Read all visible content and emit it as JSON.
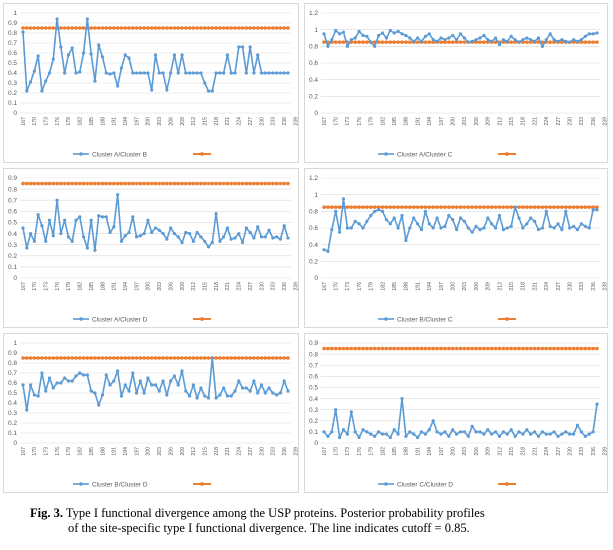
{
  "chart_data": [
    {
      "type": "line",
      "panel": 1,
      "ylim": [
        0,
        1
      ],
      "yticks": [
        "0",
        "0.1",
        "0.2",
        "0.3",
        "0.4",
        "0.5",
        "0.6",
        "0.7",
        "0.8",
        "0.9",
        "1"
      ],
      "x_tick_labels": [
        "167",
        "170",
        "173",
        "176",
        "179",
        "182",
        "185",
        "188",
        "191",
        "194",
        "197",
        "200",
        "203",
        "206",
        "209",
        "212",
        "215",
        "218",
        "221",
        "224",
        "227",
        "230",
        "233",
        "236",
        "239",
        "242",
        "245",
        "248",
        "251",
        "254",
        "257",
        "260",
        "263"
      ],
      "series": [
        {
          "name": "Cluster A/Cluster B",
          "color": "#5b9bd5",
          "marker": "circle",
          "values": [
            0.81,
            0.22,
            0.31,
            0.42,
            0.57,
            0.22,
            0.32,
            0.4,
            0.54,
            0.94,
            0.66,
            0.4,
            0.58,
            0.65,
            0.4,
            0.41,
            0.6,
            0.94,
            0.59,
            0.32,
            0.68,
            0.56,
            0.4,
            0.39,
            0.4,
            0.27,
            0.45,
            0.58,
            0.55,
            0.4,
            0.4,
            0.4,
            0.4,
            0.4,
            0.23,
            0.58,
            0.4,
            0.4,
            0.23,
            0.4,
            0.58,
            0.4,
            0.58,
            0.4,
            0.4,
            0.4,
            0.4,
            0.4,
            0.3,
            0.22,
            0.22,
            0.4,
            0.4,
            0.4,
            0.58,
            0.4,
            0.4,
            0.66,
            0.66,
            0.4,
            0.66,
            0.4,
            0.58,
            0.4,
            0.4,
            0.4,
            0.4,
            0.4,
            0.4,
            0.4,
            0.4
          ]
        },
        {
          "name": "",
          "color": "#ed7d31",
          "marker": "circle",
          "constant": 0.85
        }
      ]
    },
    {
      "type": "line",
      "panel": 2,
      "ylim": [
        0,
        1.2
      ],
      "yticks": [
        "0",
        "0.2",
        "0.4",
        "0.6",
        "0.8",
        "1",
        "1.2"
      ],
      "x_tick_labels": [
        "167",
        "170",
        "173",
        "176",
        "179",
        "182",
        "185",
        "188",
        "191",
        "194",
        "197",
        "200",
        "203",
        "206",
        "209",
        "212",
        "215",
        "218",
        "221",
        "224",
        "227",
        "230",
        "233",
        "236",
        "239",
        "242",
        "245",
        "248",
        "251",
        "254",
        "257",
        "260",
        "263"
      ],
      "series": [
        {
          "name": "Cluster A/Cluster C",
          "color": "#5b9bd5",
          "marker": "circle",
          "values": [
            0.95,
            0.8,
            0.88,
            0.99,
            0.95,
            0.97,
            0.8,
            0.88,
            0.9,
            0.98,
            0.93,
            0.92,
            0.85,
            0.8,
            0.93,
            0.96,
            0.9,
            0.99,
            0.96,
            0.98,
            0.95,
            0.93,
            0.9,
            0.86,
            0.9,
            0.86,
            0.92,
            0.95,
            0.88,
            0.86,
            0.9,
            0.88,
            0.9,
            0.93,
            0.88,
            0.95,
            0.9,
            0.85,
            0.86,
            0.88,
            0.9,
            0.93,
            0.88,
            0.86,
            0.9,
            0.82,
            0.88,
            0.86,
            0.92,
            0.88,
            0.85,
            0.88,
            0.9,
            0.88,
            0.86,
            0.9,
            0.8,
            0.88,
            0.95,
            0.88,
            0.86,
            0.88,
            0.86,
            0.85,
            0.88,
            0.86,
            0.88,
            0.92,
            0.95,
            0.95,
            0.96
          ]
        },
        {
          "name": "",
          "color": "#ed7d31",
          "marker": "circle",
          "constant": 0.85
        }
      ]
    },
    {
      "type": "line",
      "panel": 3,
      "ylim": [
        0,
        0.9
      ],
      "yticks": [
        "0",
        "0.1",
        "0.2",
        "0.3",
        "0.4",
        "0.5",
        "0.6",
        "0.7",
        "0.8",
        "0.9"
      ],
      "x_tick_labels": [
        "167",
        "170",
        "173",
        "176",
        "179",
        "182",
        "185",
        "188",
        "191",
        "194",
        "197",
        "200",
        "203",
        "206",
        "209",
        "212",
        "215",
        "218",
        "221",
        "224",
        "227",
        "230",
        "233",
        "236",
        "239",
        "242",
        "245",
        "248",
        "251",
        "254",
        "257",
        "260",
        "263"
      ],
      "series": [
        {
          "name": "Cluster A/Cluster D",
          "color": "#5b9bd5",
          "marker": "circle",
          "values": [
            0.45,
            0.27,
            0.4,
            0.33,
            0.57,
            0.47,
            0.33,
            0.52,
            0.38,
            0.7,
            0.4,
            0.52,
            0.37,
            0.33,
            0.52,
            0.55,
            0.37,
            0.27,
            0.52,
            0.25,
            0.56,
            0.55,
            0.55,
            0.41,
            0.46,
            0.75,
            0.33,
            0.38,
            0.41,
            0.55,
            0.37,
            0.38,
            0.4,
            0.52,
            0.41,
            0.45,
            0.43,
            0.4,
            0.35,
            0.45,
            0.4,
            0.37,
            0.32,
            0.41,
            0.4,
            0.33,
            0.41,
            0.37,
            0.33,
            0.28,
            0.32,
            0.58,
            0.33,
            0.37,
            0.45,
            0.35,
            0.36,
            0.4,
            0.32,
            0.45,
            0.41,
            0.36,
            0.46,
            0.37,
            0.37,
            0.43,
            0.36,
            0.37,
            0.35,
            0.47,
            0.36
          ]
        },
        {
          "name": "",
          "color": "#ed7d31",
          "marker": "circle",
          "constant": 0.85
        }
      ]
    },
    {
      "type": "line",
      "panel": 4,
      "ylim": [
        0,
        1.2
      ],
      "yticks": [
        "0",
        "0.2",
        "0.4",
        "0.6",
        "0.8",
        "1",
        "1.2"
      ],
      "x_tick_labels": [
        "167",
        "170",
        "173",
        "176",
        "179",
        "182",
        "185",
        "188",
        "191",
        "194",
        "197",
        "200",
        "203",
        "206",
        "209",
        "212",
        "215",
        "218",
        "221",
        "224",
        "227",
        "230",
        "233",
        "236",
        "239",
        "242",
        "245",
        "248",
        "251",
        "254",
        "257",
        "260",
        "263"
      ],
      "series": [
        {
          "name": "Cluster B/Cluster C",
          "color": "#5b9bd5",
          "marker": "circle",
          "values": [
            0.34,
            0.32,
            0.58,
            0.8,
            0.55,
            0.95,
            0.6,
            0.6,
            0.68,
            0.65,
            0.6,
            0.68,
            0.75,
            0.8,
            0.82,
            0.8,
            0.7,
            0.65,
            0.72,
            0.6,
            0.75,
            0.45,
            0.6,
            0.72,
            0.65,
            0.58,
            0.8,
            0.65,
            0.6,
            0.72,
            0.6,
            0.62,
            0.75,
            0.7,
            0.58,
            0.72,
            0.68,
            0.6,
            0.55,
            0.62,
            0.58,
            0.6,
            0.72,
            0.65,
            0.6,
            0.75,
            0.58,
            0.6,
            0.62,
            0.85,
            0.72,
            0.6,
            0.65,
            0.72,
            0.68,
            0.58,
            0.6,
            0.8,
            0.62,
            0.6,
            0.65,
            0.58,
            0.8,
            0.6,
            0.62,
            0.58,
            0.65,
            0.62,
            0.6,
            0.82,
            0.82
          ]
        },
        {
          "name": "",
          "color": "#ed7d31",
          "marker": "circle",
          "constant": 0.85
        }
      ]
    },
    {
      "type": "line",
      "panel": 5,
      "ylim": [
        0,
        1
      ],
      "yticks": [
        "0",
        "0.1",
        "0.2",
        "0.3",
        "0.4",
        "0.5",
        "0.6",
        "0.7",
        "0.8",
        "0.9",
        "1"
      ],
      "x_tick_labels": [
        "167",
        "170",
        "173",
        "176",
        "179",
        "182",
        "185",
        "188",
        "191",
        "194",
        "197",
        "200",
        "203",
        "206",
        "209",
        "212",
        "215",
        "218",
        "221",
        "224",
        "227",
        "230",
        "233",
        "236",
        "239",
        "242",
        "245",
        "248",
        "251",
        "254",
        "257",
        "260",
        "263"
      ],
      "series": [
        {
          "name": "Cluster B/Cluster D",
          "color": "#5b9bd5",
          "marker": "circle",
          "values": [
            0.58,
            0.33,
            0.58,
            0.48,
            0.47,
            0.7,
            0.52,
            0.65,
            0.55,
            0.6,
            0.6,
            0.65,
            0.62,
            0.62,
            0.67,
            0.7,
            0.68,
            0.68,
            0.52,
            0.5,
            0.38,
            0.48,
            0.68,
            0.58,
            0.62,
            0.72,
            0.47,
            0.58,
            0.52,
            0.7,
            0.5,
            0.62,
            0.5,
            0.65,
            0.58,
            0.58,
            0.52,
            0.62,
            0.48,
            0.62,
            0.67,
            0.58,
            0.72,
            0.52,
            0.47,
            0.58,
            0.45,
            0.55,
            0.47,
            0.45,
            0.85,
            0.45,
            0.48,
            0.55,
            0.47,
            0.47,
            0.52,
            0.62,
            0.55,
            0.55,
            0.52,
            0.62,
            0.5,
            0.58,
            0.5,
            0.55,
            0.5,
            0.48,
            0.5,
            0.62,
            0.52
          ]
        },
        {
          "name": "",
          "color": "#ed7d31",
          "marker": "circle",
          "constant": 0.85
        }
      ]
    },
    {
      "type": "line",
      "panel": 6,
      "ylim": [
        0,
        0.9
      ],
      "yticks": [
        "0",
        "0.1",
        "0.2",
        "0.3",
        "0.4",
        "0.5",
        "0.6",
        "0.7",
        "0.8",
        "0.9"
      ],
      "x_tick_labels": [
        "167",
        "170",
        "173",
        "176",
        "179",
        "182",
        "185",
        "188",
        "191",
        "194",
        "197",
        "200",
        "203",
        "206",
        "209",
        "212",
        "215",
        "218",
        "221",
        "224",
        "227",
        "230",
        "233",
        "236",
        "239",
        "242",
        "245",
        "248",
        "251",
        "254",
        "257",
        "260",
        "263"
      ],
      "series": [
        {
          "name": "Cluster C/Cluster D",
          "color": "#5b9bd5",
          "marker": "circle",
          "values": [
            0.1,
            0.06,
            0.1,
            0.3,
            0.05,
            0.12,
            0.08,
            0.28,
            0.1,
            0.05,
            0.12,
            0.1,
            0.08,
            0.06,
            0.1,
            0.08,
            0.08,
            0.05,
            0.12,
            0.08,
            0.4,
            0.06,
            0.1,
            0.08,
            0.05,
            0.1,
            0.08,
            0.12,
            0.2,
            0.1,
            0.08,
            0.1,
            0.06,
            0.12,
            0.08,
            0.1,
            0.1,
            0.06,
            0.15,
            0.1,
            0.1,
            0.08,
            0.12,
            0.08,
            0.1,
            0.06,
            0.1,
            0.08,
            0.12,
            0.06,
            0.1,
            0.08,
            0.12,
            0.08,
            0.1,
            0.06,
            0.1,
            0.08,
            0.08,
            0.1,
            0.06,
            0.08,
            0.1,
            0.08,
            0.08,
            0.16,
            0.1,
            0.06,
            0.08,
            0.1,
            0.35
          ]
        },
        {
          "name": "",
          "color": "#ed7d31",
          "marker": "circle",
          "constant": 0.85
        }
      ]
    }
  ],
  "caption": {
    "label": "Fig. 3.",
    "line1": " Type I functional divergence among the USP proteins. Posterior probability profiles",
    "line2": "of the site-specific type I functional divergence. The line indicates cutoff = 0.85."
  }
}
